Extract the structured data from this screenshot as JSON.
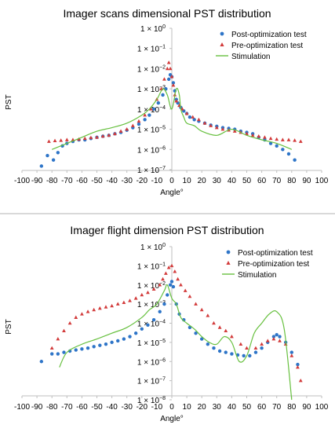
{
  "colors": {
    "post": "#2e75c8",
    "pre": "#d23a3a",
    "stim": "#67c03f",
    "axis": "#bfbfbf"
  },
  "chart_data": [
    {
      "type": "scatter",
      "title": "Imager scans dimensional PST distribution",
      "xlabel": "Angle°",
      "ylabel": "PST",
      "xlim": [
        -100,
        100
      ],
      "ylim_log10": [
        -7,
        0
      ],
      "x_ticks": [
        -100,
        -90,
        -80,
        -70,
        -60,
        -50,
        -40,
        -30,
        -20,
        -10,
        0,
        10,
        20,
        30,
        40,
        50,
        60,
        70,
        80,
        90,
        100
      ],
      "y_tick_exponents": [
        0,
        -1,
        -2,
        -3,
        -4,
        -5,
        -6,
        -7
      ],
      "y_tick_base": "1 × 10",
      "legend_position": "top-right",
      "series": [
        {
          "name": "Post-optimization test",
          "kind": "points",
          "marker": "circle",
          "x": [
            -87,
            -83,
            -79,
            -76,
            -73,
            -70,
            -66,
            -62,
            -58,
            -54,
            -50,
            -46,
            -42,
            -38,
            -34,
            -30,
            -26,
            -22,
            -18,
            -15,
            -12,
            -9,
            -6,
            -4,
            -2,
            -1,
            0,
            1,
            2,
            3,
            4,
            6,
            8,
            10,
            12,
            15,
            18,
            22,
            26,
            30,
            34,
            38,
            42,
            46,
            50,
            54,
            58,
            62,
            66,
            70,
            74,
            78,
            82
          ],
          "y": [
            1.5e-07,
            5e-07,
            3e-07,
            7e-07,
            1.5e-06,
            2e-06,
            2.5e-06,
            3e-06,
            3e-06,
            3.5e-06,
            4e-06,
            4.5e-06,
            5e-06,
            6e-06,
            7e-06,
            9e-06,
            1.2e-05,
            1.8e-05,
            3e-05,
            5e-05,
            0.0001,
            0.0002,
            0.0005,
            0.001,
            0.003,
            0.005,
            0.004,
            0.002,
            0.0008,
            0.0003,
            0.0002,
            0.00012,
            8e-05,
            6e-05,
            4e-05,
            3e-05,
            2.5e-05,
            2e-05,
            1.6e-05,
            1.4e-05,
            1.2e-05,
            1.1e-05,
            1e-05,
            8e-06,
            7e-06,
            6e-06,
            4e-06,
            3e-06,
            2e-06,
            1.5e-06,
            1e-06,
            6e-07,
            3e-07
          ]
        },
        {
          "name": "Pre-optimization test",
          "kind": "points",
          "marker": "triangle",
          "x": [
            -82,
            -78,
            -74,
            -70,
            -66,
            -62,
            -58,
            -54,
            -50,
            -46,
            -42,
            -38,
            -34,
            -30,
            -26,
            -22,
            -18,
            -14,
            -10,
            -7,
            -5,
            -3,
            -2,
            -1,
            0,
            1,
            2,
            3,
            5,
            7,
            10,
            14,
            18,
            22,
            26,
            30,
            34,
            38,
            42,
            46,
            50,
            54,
            58,
            62,
            66,
            70,
            74,
            78,
            82,
            86
          ],
          "y": [
            2.5e-06,
            2.7e-06,
            2.8e-06,
            3e-06,
            3e-06,
            3.2e-06,
            3.5e-06,
            3.8e-06,
            4e-06,
            4.5e-06,
            5e-06,
            6e-06,
            8e-06,
            1e-05,
            1.5e-05,
            2.5e-05,
            5e-05,
            0.0001,
            0.0003,
            0.001,
            0.003,
            0.01,
            0.02,
            0.01,
            0.004,
            0.0015,
            0.0005,
            0.00025,
            0.00015,
            0.0001,
            6e-05,
            4e-05,
            3e-05,
            2e-05,
            1.5e-05,
            1.2e-05,
            1e-05,
            9e-06,
            8e-06,
            7e-06,
            6e-06,
            5e-06,
            4.5e-06,
            4e-06,
            3.5e-06,
            3.2e-06,
            3e-06,
            3e-06,
            2.8e-06,
            2.5e-06
          ]
        },
        {
          "name": "Stimulation",
          "kind": "line",
          "x": [
            -80,
            -70,
            -60,
            -50,
            -40,
            -30,
            -20,
            -15,
            -10,
            -6,
            -3,
            0,
            3,
            5,
            6,
            8,
            10,
            15,
            20,
            30,
            40,
            50,
            60,
            70,
            80
          ],
          "y": [
            1e-06,
            2e-06,
            4e-06,
            8e-06,
            1.2e-05,
            2e-05,
            5e-05,
            0.0001,
            0.0003,
            0.001,
            0.0005,
            0.0001,
            0.001,
            0.0005,
            0.0001,
            4e-05,
            2e-05,
            1.5e-05,
            8e-06,
            5e-06,
            1e-05,
            5e-06,
            3e-06,
            2e-06,
            1e-06
          ]
        }
      ]
    },
    {
      "type": "scatter",
      "title": "Imager flight dimension PST distribution",
      "xlabel": "Angle°",
      "ylabel": "PST",
      "xlim": [
        -100,
        100
      ],
      "ylim_log10": [
        -8,
        0
      ],
      "x_ticks": [
        -100,
        -90,
        -80,
        -70,
        -60,
        -50,
        -40,
        -30,
        -20,
        -10,
        0,
        10,
        20,
        30,
        40,
        50,
        60,
        70,
        80,
        90,
        100
      ],
      "y_tick_exponents": [
        0,
        -1,
        -2,
        -3,
        -4,
        -5,
        -6,
        -7,
        -8
      ],
      "y_tick_base": "1 × 10",
      "legend_position": "top-right",
      "series": [
        {
          "name": "Post-optimization test",
          "kind": "points",
          "marker": "circle",
          "x": [
            -87,
            -80,
            -76,
            -72,
            -68,
            -64,
            -60,
            -56,
            -52,
            -48,
            -44,
            -40,
            -36,
            -32,
            -28,
            -24,
            -20,
            -16,
            -12,
            -8,
            -5,
            -3,
            -1,
            0,
            1,
            3,
            5,
            8,
            12,
            16,
            20,
            24,
            28,
            32,
            36,
            40,
            44,
            48,
            52,
            56,
            60,
            64,
            68,
            70,
            72,
            76,
            80,
            84
          ],
          "y": [
            1e-06,
            2.5e-06,
            2.5e-06,
            3e-06,
            3.5e-06,
            4e-06,
            4.5e-06,
            5e-06,
            6e-06,
            7e-06,
            8e-06,
            1e-05,
            1.2e-05,
            1.5e-05,
            2e-05,
            3e-05,
            5e-05,
            8e-05,
            0.00015,
            0.0004,
            0.001,
            0.003,
            0.01,
            0.015,
            0.008,
            0.001,
            0.0003,
            0.00015,
            6e-05,
            3e-05,
            1.5e-05,
            8e-06,
            5e-06,
            3.5e-06,
            3e-06,
            2.5e-06,
            2.2e-06,
            2e-06,
            2e-06,
            3e-06,
            5e-06,
            1e-05,
            2e-05,
            2.5e-05,
            2e-05,
            1e-05,
            3e-06,
            7e-07
          ]
        },
        {
          "name": "Pre-optimization test",
          "kind": "points",
          "marker": "triangle",
          "x": [
            -80,
            -76,
            -72,
            -68,
            -64,
            -60,
            -56,
            -52,
            -48,
            -44,
            -40,
            -36,
            -32,
            -28,
            -24,
            -20,
            -16,
            -12,
            -8,
            -6,
            -4,
            -2,
            0,
            2,
            4,
            6,
            9,
            12,
            16,
            20,
            24,
            28,
            32,
            36,
            40,
            46,
            50,
            56,
            60,
            64,
            68,
            72,
            76,
            80,
            84,
            86
          ],
          "y": [
            5e-06,
            1.5e-05,
            4e-05,
            0.0001,
            0.0002,
            0.0003,
            0.0004,
            0.0005,
            0.0006,
            0.0007,
            0.0008,
            0.001,
            0.0012,
            0.0015,
            0.002,
            0.003,
            0.004,
            0.006,
            0.01,
            0.02,
            0.04,
            0.08,
            0.1,
            0.05,
            0.02,
            0.01,
            0.005,
            0.0025,
            0.001,
            0.0005,
            0.00025,
            0.0001,
            6e-05,
            4e-05,
            2e-05,
            8e-06,
            5e-06,
            5e-06,
            8e-06,
            1.2e-05,
            1.5e-05,
            1.2e-05,
            8e-06,
            2e-06,
            5e-07,
            1e-07
          ]
        },
        {
          "name": "Stimulation",
          "kind": "line",
          "x": [
            -75,
            -70,
            -60,
            -50,
            -40,
            -30,
            -20,
            -15,
            -10,
            -5,
            -3,
            0,
            3,
            6,
            10,
            15,
            20,
            25,
            30,
            35,
            40,
            45,
            50,
            55,
            60,
            65,
            70,
            75,
            80
          ],
          "y": [
            5e-07,
            3e-06,
            8e-06,
            1.5e-05,
            3e-05,
            6e-05,
            0.0002,
            0.0005,
            0.001,
            0.005,
            0.01,
            0.002,
            0.001,
            0.0002,
            0.0001,
            5e-05,
            2e-05,
            1e-05,
            8e-06,
            2e-05,
            1e-05,
            1e-06,
            2e-06,
            3e-05,
            0.0001,
            0.0003,
            0.0004,
            5e-05,
            1e-08
          ]
        }
      ]
    }
  ]
}
